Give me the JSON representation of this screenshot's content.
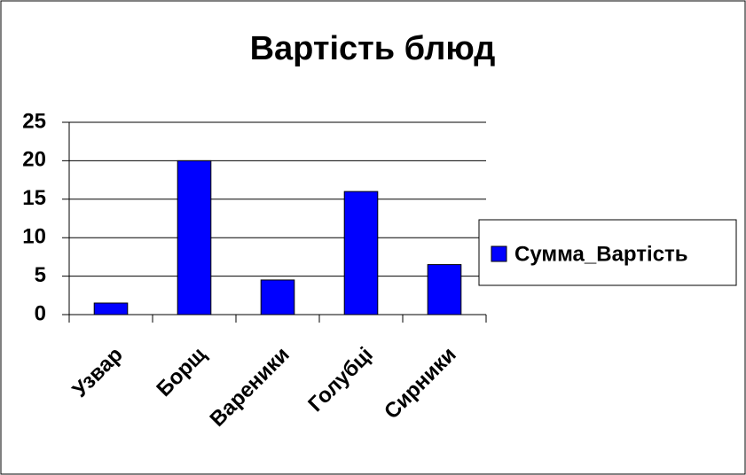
{
  "chart_data": {
    "type": "bar",
    "title": "Вартість блюд",
    "categories": [
      "Узвар",
      "Борщ",
      "Вареники",
      "Голубці",
      "Сирники"
    ],
    "series": [
      {
        "name": "Сумма_Вартість",
        "color": "#0000ff",
        "values": [
          1.5,
          20,
          4.5,
          16,
          6.5
        ]
      }
    ],
    "ylim": [
      0,
      25
    ],
    "yticks": [
      0,
      5,
      10,
      15,
      20,
      25
    ],
    "grid": true,
    "legend": "right"
  }
}
